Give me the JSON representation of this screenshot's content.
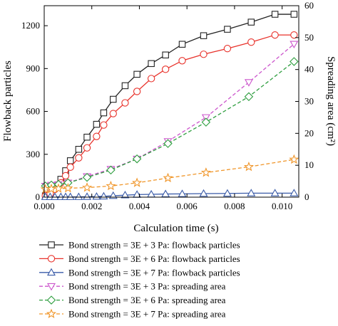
{
  "chart_data": {
    "type": "line",
    "xlabel": "Calculation time (s)",
    "ylabel": "Flowback particles",
    "y2label": "Spreading area (cm²)",
    "xlim": [
      0,
      0.0107
    ],
    "ylim": [
      0,
      1340
    ],
    "y2lim": [
      0,
      60
    ],
    "xticks": [
      "0.000",
      "0.002",
      "0.004",
      "0.006",
      "0.008",
      "0.010"
    ],
    "xtick_values": [
      0,
      0.002,
      0.004,
      0.006,
      0.008,
      0.01
    ],
    "yticks": [
      "0",
      "300",
      "600",
      "900",
      "1200"
    ],
    "ytick_values": [
      0,
      300,
      600,
      900,
      1200
    ],
    "y2ticks": [
      "0",
      "10",
      "20",
      "30",
      "40",
      "50",
      "60"
    ],
    "y2tick_values": [
      0,
      10,
      20,
      30,
      40,
      50,
      60
    ],
    "legend_position": "bottom",
    "series": [
      {
        "name": "Bond strength = 3E + 3 Pa: flowback particles",
        "axis": "left",
        "color": "#222222",
        "marker": "square",
        "dashed": false,
        "x": [
          5e-05,
          0.00025,
          0.00045,
          0.0007,
          0.0009,
          0.0011,
          0.00145,
          0.0018,
          0.0022,
          0.0025,
          0.0029,
          0.0034,
          0.0039,
          0.0045,
          0.0051,
          0.0058,
          0.0067,
          0.0077,
          0.0087,
          0.0097,
          0.0105
        ],
        "y": [
          10,
          35,
          75,
          125,
          185,
          255,
          335,
          420,
          510,
          590,
          685,
          780,
          860,
          935,
          995,
          1070,
          1130,
          1175,
          1225,
          1280,
          1280
        ]
      },
      {
        "name": "Bond strength = 3E + 6 Pa: flowback particles",
        "axis": "left",
        "color": "#e8312a",
        "marker": "circle",
        "dashed": false,
        "x": [
          5e-05,
          0.00025,
          0.00045,
          0.0007,
          0.0009,
          0.0011,
          0.00145,
          0.0018,
          0.0022,
          0.0025,
          0.0029,
          0.0034,
          0.0039,
          0.0045,
          0.0051,
          0.0058,
          0.0067,
          0.0077,
          0.0087,
          0.0097,
          0.0105
        ],
        "y": [
          10,
          25,
          55,
          100,
          150,
          210,
          275,
          345,
          425,
          505,
          585,
          660,
          740,
          830,
          895,
          955,
          1000,
          1040,
          1085,
          1135,
          1135
        ]
      },
      {
        "name": "Bond strength = 3E + 7 Pa: flowback particles",
        "axis": "left",
        "color": "#3a5ba8",
        "marker": "triangle-up",
        "dashed": false,
        "x": [
          5e-05,
          0.00025,
          0.00045,
          0.0007,
          0.0009,
          0.0011,
          0.00145,
          0.0018,
          0.0022,
          0.0025,
          0.0029,
          0.0034,
          0.0039,
          0.0045,
          0.0051,
          0.0058,
          0.0067,
          0.0077,
          0.0087,
          0.0097,
          0.0105
        ],
        "y": [
          2,
          2,
          2,
          2,
          2,
          2,
          2,
          3,
          4,
          6,
          10,
          14,
          18,
          20,
          22,
          23,
          25,
          26,
          28,
          28,
          28
        ]
      },
      {
        "name": "Bond strength = 3E + 3 Pa: spreading area",
        "axis": "right",
        "color": "#cc55cc",
        "marker": "triangle-down",
        "dashed": true,
        "x": [
          5e-05,
          0.0003,
          0.0006,
          0.001,
          0.0018,
          0.0028,
          0.0039,
          0.0052,
          0.0068,
          0.0086,
          0.0105
        ],
        "y": [
          3.5,
          3.8,
          4.0,
          4.5,
          6.5,
          8.8,
          12.0,
          17.5,
          25.0,
          36.0,
          48.0
        ]
      },
      {
        "name": "Bond strength = 3E + 6 Pa: spreading area",
        "axis": "right",
        "color": "#2e9e3f",
        "marker": "diamond",
        "dashed": true,
        "x": [
          5e-05,
          0.0003,
          0.0006,
          0.001,
          0.0018,
          0.0028,
          0.0039,
          0.0052,
          0.0068,
          0.0086,
          0.0105
        ],
        "y": [
          3.5,
          3.8,
          4.0,
          4.5,
          6.2,
          8.5,
          12.0,
          16.8,
          23.5,
          31.5,
          42.5
        ]
      },
      {
        "name": "Bond strength = 3E + 7 Pa: spreading area",
        "axis": "right",
        "color": "#f0962a",
        "marker": "star",
        "dashed": true,
        "x": [
          5e-05,
          0.0003,
          0.0006,
          0.001,
          0.0018,
          0.0028,
          0.0039,
          0.0052,
          0.0068,
          0.0086,
          0.0105
        ],
        "y": [
          2.5,
          2.6,
          2.7,
          2.8,
          3.0,
          3.5,
          4.5,
          6.0,
          7.7,
          9.5,
          11.8
        ]
      }
    ]
  }
}
